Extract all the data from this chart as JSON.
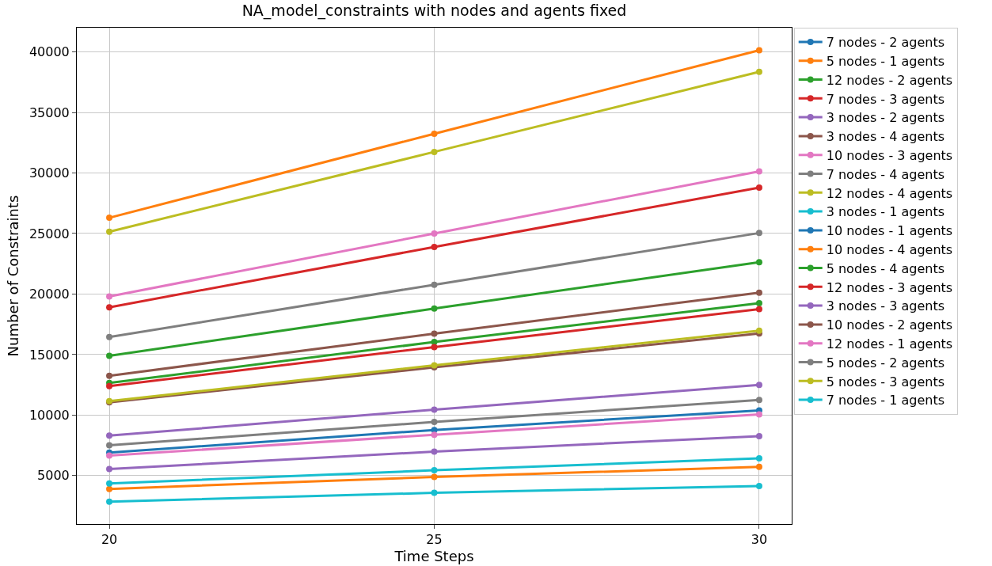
{
  "chart_data": {
    "type": "line",
    "title": "NA_model_constraints with nodes and agents fixed",
    "xlabel": "Time Steps",
    "ylabel": "Number of Constraints",
    "x": [
      20,
      25,
      30
    ],
    "xlim": [
      19.5,
      30.5
    ],
    "xticks": [
      20,
      25,
      30
    ],
    "ylim": [
      1000,
      42000
    ],
    "yticks": [
      5000,
      10000,
      15000,
      20000,
      25000,
      30000,
      35000,
      40000
    ],
    "grid": true,
    "legend": "right",
    "marker": "circle",
    "line_style": "solid",
    "series": [
      {
        "name": "7 nodes - 2 agents",
        "color": "#1f77b4",
        "values": [
          null,
          null,
          null
        ]
      },
      {
        "name": "5 nodes - 1 agents",
        "color": "#ff7f0e",
        "values": [
          3900,
          4890,
          5720
        ]
      },
      {
        "name": "12 nodes - 2 agents",
        "color": "#2ca02c",
        "values": [
          12650,
          16040,
          19250
        ]
      },
      {
        "name": "7 nodes - 3 agents",
        "color": "#d62728",
        "values": [
          12400,
          15620,
          18750
        ]
      },
      {
        "name": "3 nodes - 2 agents",
        "color": "#9467bd",
        "values": [
          5550,
          6980,
          8260
        ]
      },
      {
        "name": "3 nodes - 4 agents",
        "color": "#8c564b",
        "values": [
          11050,
          13940,
          16740
        ]
      },
      {
        "name": "10 nodes - 3 agents",
        "color": "#e377c2",
        "values": [
          19800,
          25000,
          30130
        ]
      },
      {
        "name": "7 nodes - 4 agents",
        "color": "#7f7f7f",
        "values": [
          16450,
          20770,
          25040
        ]
      },
      {
        "name": "12 nodes - 4 agents",
        "color": "#bcbd22",
        "values": [
          25150,
          31740,
          38350
        ]
      },
      {
        "name": "3 nodes - 1 agents",
        "color": "#17becf",
        "values": [
          2850,
          3580,
          4140
        ]
      },
      {
        "name": "10 nodes - 1 agents",
        "color": "#1f77b4",
        "values": [
          6900,
          8770,
          10380
        ]
      },
      {
        "name": "10 nodes - 4 agents",
        "color": "#ff7f0e",
        "values": [
          26300,
          33240,
          40140
        ]
      },
      {
        "name": "5 nodes - 4 agents",
        "color": "#2ca02c",
        "values": [
          14900,
          18800,
          22630
        ]
      },
      {
        "name": "12 nodes - 3 agents",
        "color": "#d62728",
        "values": [
          18900,
          23890,
          28790
        ]
      },
      {
        "name": "3 nodes - 3 agents",
        "color": "#9467bd",
        "values": [
          8300,
          10450,
          12490
        ]
      },
      {
        "name": "10 nodes - 2 agents",
        "color": "#8c564b",
        "values": [
          13250,
          16730,
          20110
        ]
      },
      {
        "name": "12 nodes - 1 agents",
        "color": "#e377c2",
        "values": [
          6650,
          8380,
          10050
        ]
      },
      {
        "name": "5 nodes - 2 agents",
        "color": "#7f7f7f",
        "values": [
          7500,
          9430,
          11250
        ]
      },
      {
        "name": "5 nodes - 3 agents",
        "color": "#bcbd22",
        "values": [
          11150,
          14110,
          16970
        ]
      },
      {
        "name": "7 nodes - 1 agents",
        "color": "#17becf",
        "values": [
          4350,
          5440,
          6430
        ]
      }
    ]
  }
}
